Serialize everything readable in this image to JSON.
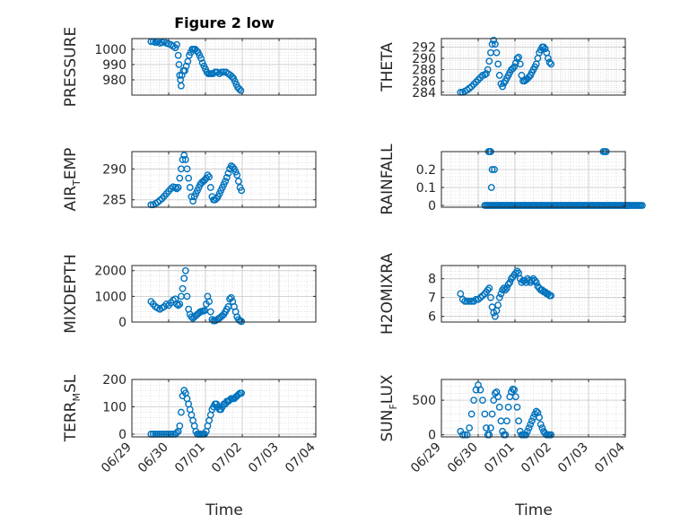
{
  "figure": {
    "title": "Figure 2 low",
    "xlabel": "Time",
    "x_ticks": [
      "06/29",
      "06/30",
      "07/01",
      "07/02",
      "07/03",
      "07/04"
    ],
    "marker_color": "#0072BD",
    "grid": "major and minor, dotted"
  },
  "chart_data": [
    {
      "type": "scatter",
      "panel": "PRESSURE",
      "ylabel": "PRESSURE",
      "ylim": [
        970,
        1007
      ],
      "yticks": [
        980,
        990,
        1000
      ],
      "x": [
        0.52,
        0.58,
        0.64,
        0.7,
        0.76,
        0.82,
        0.88,
        0.94,
        1.0,
        1.06,
        1.12,
        1.18,
        1.22,
        1.26,
        1.28,
        1.3,
        1.32,
        1.34,
        1.36,
        1.4,
        1.44,
        1.48,
        1.52,
        1.56,
        1.6,
        1.64,
        1.68,
        1.72,
        1.76,
        1.8,
        1.84,
        1.88,
        1.92,
        1.96,
        2.0,
        2.04,
        2.08,
        2.12,
        2.16,
        2.2,
        2.26,
        2.32,
        2.38,
        2.44,
        2.5,
        2.56,
        2.62,
        2.68,
        2.72,
        2.76,
        2.8,
        2.84,
        2.88,
        2.92,
        2.96
      ],
      "y": [
        1005,
        1005,
        1004.5,
        1005,
        1004,
        1004.5,
        1005,
        1004,
        1003.5,
        1003,
        1002,
        1001,
        1003,
        996,
        990,
        983,
        980,
        976,
        983,
        986,
        986,
        989,
        992,
        996,
        998,
        1000,
        1000,
        1000,
        999,
        998,
        996,
        994,
        991,
        989,
        987,
        985,
        984,
        984,
        984,
        984,
        985,
        985,
        984,
        985,
        985,
        985,
        984,
        983,
        982,
        981,
        979,
        977,
        975,
        974,
        973
      ]
    },
    {
      "type": "scatter",
      "panel": "THETA",
      "ylabel": "THETA",
      "ylim": [
        283.5,
        293.5
      ],
      "yticks": [
        284,
        286,
        288,
        290,
        292
      ],
      "x": [
        0.52,
        0.58,
        0.64,
        0.7,
        0.76,
        0.82,
        0.88,
        0.94,
        1.0,
        1.06,
        1.12,
        1.18,
        1.22,
        1.26,
        1.3,
        1.34,
        1.38,
        1.42,
        1.46,
        1.5,
        1.54,
        1.58,
        1.62,
        1.66,
        1.7,
        1.74,
        1.78,
        1.82,
        1.86,
        1.9,
        1.94,
        1.98,
        2.02,
        2.06,
        2.1,
        2.14,
        2.18,
        2.22,
        2.26,
        2.3,
        2.34,
        2.38,
        2.42,
        2.46,
        2.5,
        2.54,
        2.58,
        2.62,
        2.66,
        2.7,
        2.74,
        2.78,
        2.82,
        2.86,
        2.9,
        2.94,
        2.98
      ],
      "y": [
        284,
        284,
        284.2,
        284.4,
        284.7,
        285,
        285.4,
        285.8,
        286.2,
        286.6,
        287,
        287.1,
        287.3,
        288,
        289.5,
        291,
        292.5,
        293.2,
        292.5,
        291,
        289,
        287,
        285.5,
        285,
        285.6,
        286,
        286.5,
        287,
        287.5,
        288,
        288.2,
        288.5,
        289.2,
        290,
        290.2,
        289,
        287,
        286,
        286,
        286.2,
        286.4,
        286.7,
        287,
        287.5,
        288,
        288.5,
        289,
        290,
        291,
        291.5,
        292,
        292,
        291.7,
        291,
        290,
        289.3,
        289
      ]
    },
    {
      "type": "scatter",
      "panel": "AIR_TEMP",
      "ylabel": "AIR_TEMP",
      "ylim": [
        283.8,
        292.8
      ],
      "yticks": [
        285,
        290
      ],
      "x": [
        0.52,
        0.58,
        0.64,
        0.7,
        0.76,
        0.82,
        0.88,
        0.94,
        1.0,
        1.06,
        1.12,
        1.18,
        1.22,
        1.26,
        1.3,
        1.34,
        1.38,
        1.42,
        1.46,
        1.5,
        1.54,
        1.58,
        1.62,
        1.66,
        1.7,
        1.74,
        1.78,
        1.82,
        1.86,
        1.9,
        1.94,
        1.98,
        2.02,
        2.06,
        2.1,
        2.14,
        2.18,
        2.22,
        2.26,
        2.3,
        2.34,
        2.38,
        2.42,
        2.46,
        2.5,
        2.54,
        2.58,
        2.62,
        2.66,
        2.7,
        2.74,
        2.78,
        2.82,
        2.86,
        2.9,
        2.94,
        2.98
      ],
      "y": [
        284.2,
        284.2,
        284.4,
        284.6,
        284.9,
        285.2,
        285.6,
        286,
        286.4,
        286.8,
        287.1,
        287,
        286.8,
        287,
        288.5,
        290,
        291.5,
        292.2,
        291.5,
        290,
        288.5,
        287,
        285.5,
        284.8,
        285.5,
        286,
        286.5,
        287,
        287.5,
        287.8,
        288,
        288.2,
        288.5,
        289,
        288.7,
        287,
        285.5,
        285,
        285,
        285.2,
        285.5,
        286,
        286.5,
        287,
        287.5,
        288,
        288.6,
        289.3,
        290,
        290.5,
        290.3,
        290,
        289.5,
        289,
        288,
        287,
        286.5
      ]
    },
    {
      "type": "scatter",
      "panel": "RAINFALL",
      "ylabel": "RAINFALL",
      "ylim": [
        -0.01,
        0.3
      ],
      "yticks": [
        0,
        0.1,
        0.2
      ],
      "x": [
        1.26,
        1.3,
        1.34,
        1.38,
        1.42,
        1.46,
        1.5,
        1.54,
        1.58,
        1.62,
        1.66,
        1.7,
        1.74,
        1.78,
        1.82,
        1.86,
        1.9,
        1.94,
        1.98,
        2.02,
        2.06,
        2.1,
        2.14,
        2.18,
        2.22,
        2.26,
        2.3,
        2.34,
        2.38,
        2.42,
        2.46,
        2.5,
        2.54,
        2.58,
        2.62,
        2.66,
        2.7,
        2.74,
        2.78,
        2.82,
        2.86,
        2.9,
        2.94,
        2.98,
        3.02,
        3.06,
        3.1,
        3.14,
        3.18,
        3.22,
        3.26,
        3.3,
        3.34,
        3.38,
        3.42,
        3.46,
        3.5,
        3.54,
        3.58,
        3.62,
        3.66,
        3.7,
        3.74,
        3.78,
        3.82,
        3.86,
        3.9,
        3.94,
        3.98,
        4.02,
        4.06,
        4.1,
        4.14,
        4.18,
        4.22,
        4.26,
        4.3,
        4.34,
        4.38,
        4.42,
        4.46,
        4.5,
        4.54,
        4.58,
        4.62,
        4.66,
        4.7,
        4.74,
        4.78,
        4.82,
        4.86,
        4.9,
        4.94,
        4.98,
        5.0,
        5.02,
        5.04,
        5.06,
        5.08,
        5.1,
        5.14,
        5.18,
        5.22,
        5.26,
        5.3,
        5.34,
        5.38,
        5.42,
        5.46,
        1.18,
        1.22,
        1.28,
        1.32,
        1.34,
        1.38,
        1.44,
        1.36,
        4.4,
        4.44,
        4.48
      ],
      "y": [
        0,
        0,
        0,
        0,
        0,
        0,
        0,
        0,
        0,
        0,
        0,
        0,
        0,
        0,
        0,
        0,
        0,
        0,
        0,
        0,
        0,
        0,
        0,
        0,
        0,
        0,
        0,
        0,
        0,
        0,
        0,
        0,
        0,
        0,
        0,
        0,
        0,
        0,
        0,
        0,
        0,
        0,
        0,
        0,
        0,
        0,
        0,
        0,
        0,
        0,
        0,
        0,
        0,
        0,
        0,
        0,
        0,
        0,
        0,
        0,
        0,
        0,
        0,
        0,
        0,
        0,
        0,
        0,
        0,
        0,
        0,
        0,
        0,
        0,
        0,
        0,
        0,
        0,
        0,
        0,
        0,
        0,
        0,
        0,
        0,
        0,
        0,
        0,
        0,
        0,
        0,
        0,
        0,
        0,
        0,
        0,
        0,
        0,
        0,
        0,
        0,
        0,
        0,
        0,
        0,
        0,
        0,
        0,
        0,
        0,
        0,
        0.3,
        0.3,
        0.3,
        0.2,
        0.2,
        0.1,
        0.3,
        0.3,
        0.3
      ]
    },
    {
      "type": "scatter",
      "panel": "MIXDEPTH",
      "ylabel": "MIXDEPTH",
      "ylim": [
        0,
        2200
      ],
      "yticks": [
        0,
        1000,
        2000
      ],
      "x": [
        0.52,
        0.58,
        0.64,
        0.7,
        0.76,
        0.82,
        0.88,
        0.94,
        1.0,
        1.06,
        1.12,
        1.18,
        1.22,
        1.26,
        1.3,
        1.34,
        1.38,
        1.42,
        1.46,
        1.5,
        1.54,
        1.58,
        1.62,
        1.66,
        1.7,
        1.74,
        1.78,
        1.82,
        1.86,
        1.9,
        1.94,
        1.98,
        2.02,
        2.06,
        2.1,
        2.14,
        2.18,
        2.22,
        2.26,
        2.3,
        2.34,
        2.38,
        2.42,
        2.46,
        2.5,
        2.54,
        2.58,
        2.62,
        2.66,
        2.7,
        2.74,
        2.78,
        2.82,
        2.86,
        2.9,
        2.94,
        2.98
      ],
      "y": [
        800,
        700,
        600,
        550,
        500,
        550,
        600,
        700,
        650,
        750,
        850,
        900,
        700,
        650,
        700,
        1000,
        1300,
        1700,
        2000,
        1000,
        500,
        300,
        200,
        150,
        200,
        250,
        300,
        350,
        400,
        420,
        430,
        450,
        700,
        1000,
        800,
        400,
        100,
        50,
        50,
        80,
        120,
        150,
        200,
        250,
        300,
        400,
        500,
        600,
        900,
        950,
        800,
        600,
        400,
        200,
        100,
        50,
        20
      ]
    },
    {
      "type": "scatter",
      "panel": "H2OMIXRA",
      "ylabel": "H2OMIXRA",
      "ylim": [
        5.7,
        8.7
      ],
      "yticks": [
        6,
        7,
        8
      ],
      "x": [
        0.52,
        0.58,
        0.64,
        0.7,
        0.76,
        0.82,
        0.88,
        0.94,
        1.0,
        1.06,
        1.12,
        1.18,
        1.22,
        1.26,
        1.3,
        1.34,
        1.38,
        1.42,
        1.46,
        1.5,
        1.54,
        1.58,
        1.62,
        1.66,
        1.7,
        1.74,
        1.78,
        1.82,
        1.86,
        1.9,
        1.94,
        1.98,
        2.02,
        2.06,
        2.1,
        2.14,
        2.18,
        2.22,
        2.26,
        2.3,
        2.34,
        2.38,
        2.42,
        2.46,
        2.5,
        2.54,
        2.58,
        2.62,
        2.66,
        2.7,
        2.74,
        2.78,
        2.82,
        2.86,
        2.9,
        2.94,
        2.98
      ],
      "y": [
        7.2,
        6.9,
        6.8,
        6.8,
        6.8,
        6.8,
        6.8,
        6.9,
        6.9,
        7.0,
        7.1,
        7.2,
        7.3,
        7.4,
        7.5,
        7.0,
        6.5,
        6.2,
        6.0,
        6.3,
        6.6,
        7.0,
        7.2,
        7.4,
        7.5,
        7.4,
        7.5,
        7.7,
        7.8,
        8.0,
        8.1,
        8.2,
        8.3,
        8.4,
        8.3,
        8.0,
        7.8,
        7.9,
        7.9,
        7.8,
        8.0,
        7.9,
        7.8,
        7.9,
        8.0,
        7.9,
        7.8,
        7.6,
        7.5,
        7.4,
        7.4,
        7.3,
        7.3,
        7.2,
        7.2,
        7.1,
        7.1
      ]
    },
    {
      "type": "scatter",
      "panel": "TERR_MSL",
      "ylabel": "TERR_MSL",
      "ylim": [
        -10,
        200
      ],
      "yticks": [
        0,
        100,
        200
      ],
      "x": [
        0.52,
        0.58,
        0.64,
        0.7,
        0.76,
        0.82,
        0.88,
        0.94,
        1.0,
        1.06,
        1.12,
        1.18,
        1.22,
        1.26,
        1.3,
        1.34,
        1.38,
        1.42,
        1.46,
        1.5,
        1.54,
        1.58,
        1.62,
        1.66,
        1.7,
        1.74,
        1.78,
        1.82,
        1.86,
        1.9,
        1.94,
        1.98,
        2.02,
        2.06,
        2.1,
        2.14,
        2.18,
        2.22,
        2.26,
        2.3,
        2.34,
        2.38,
        2.42,
        2.46,
        2.5,
        2.54,
        2.58,
        2.62,
        2.66,
        2.7,
        2.74,
        2.78,
        2.82,
        2.86,
        2.9,
        2.94,
        2.98
      ],
      "y": [
        0,
        0,
        0,
        0,
        0,
        0,
        0,
        0,
        0,
        0,
        0,
        0,
        5,
        10,
        30,
        80,
        140,
        160,
        150,
        130,
        110,
        90,
        70,
        50,
        30,
        10,
        0,
        0,
        0,
        0,
        0,
        0,
        10,
        30,
        50,
        70,
        90,
        100,
        110,
        110,
        100,
        90,
        90,
        100,
        110,
        110,
        120,
        120,
        125,
        130,
        130,
        130,
        135,
        140,
        145,
        150,
        150
      ]
    },
    {
      "type": "scatter",
      "panel": "SUN_FLUX",
      "ylabel": "SUN_FLUX",
      "ylim": [
        -30,
        800
      ],
      "yticks": [
        0,
        500
      ],
      "x": [
        0.52,
        0.58,
        0.64,
        0.7,
        0.76,
        0.82,
        0.88,
        0.94,
        1.0,
        1.06,
        1.12,
        1.18,
        1.22,
        1.26,
        1.3,
        1.34,
        1.38,
        1.42,
        1.46,
        1.5,
        1.54,
        1.58,
        1.62,
        1.66,
        1.7,
        1.74,
        1.78,
        1.82,
        1.86,
        1.9,
        1.94,
        1.98,
        2.02,
        2.06,
        2.1,
        2.14,
        2.18,
        2.22,
        2.26,
        2.3,
        2.34,
        2.38,
        2.42,
        2.46,
        2.5,
        2.54,
        2.58,
        2.62,
        2.66,
        2.7,
        2.74,
        2.78,
        2.82,
        2.86,
        2.9,
        2.94,
        2.98
      ],
      "y": [
        50,
        0,
        0,
        0,
        100,
        300,
        500,
        650,
        720,
        650,
        500,
        300,
        100,
        0,
        0,
        100,
        300,
        500,
        600,
        620,
        550,
        400,
        200,
        50,
        0,
        0,
        200,
        400,
        550,
        620,
        660,
        650,
        550,
        400,
        200,
        50,
        0,
        0,
        0,
        0,
        50,
        100,
        150,
        200,
        250,
        300,
        340,
        320,
        250,
        150,
        100,
        50,
        20,
        0,
        0,
        0,
        0
      ]
    }
  ]
}
